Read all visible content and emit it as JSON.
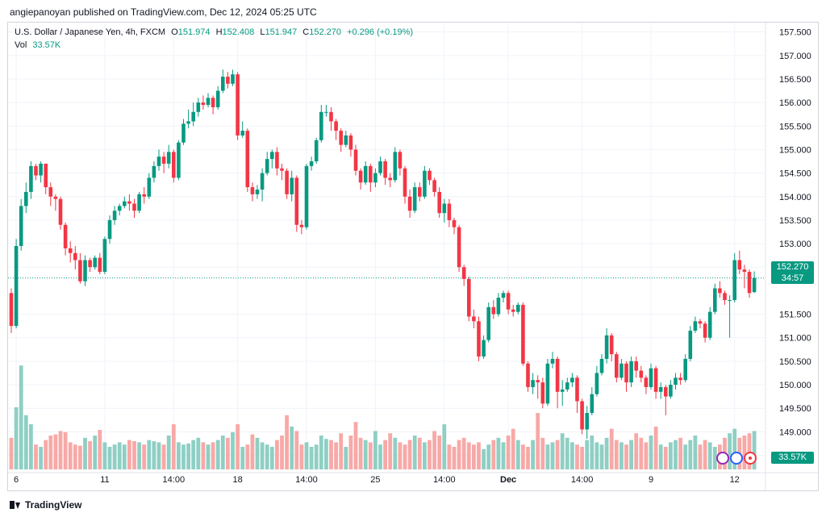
{
  "publisher": "angiepanoyan published on TradingView.com, Dec 12, 2024 05:25 UTC",
  "legend": {
    "symbol": "U.S. Dollar / Japanese Yen, 4h, FXCM",
    "o_label": "O",
    "o_value": "151.974",
    "h_label": "H",
    "h_value": "152.408",
    "l_label": "L",
    "l_value": "151.947",
    "c_label": "C",
    "c_value": "152.270",
    "change": "+0.296 (+0.19%)",
    "vol_label": "Vol",
    "vol_value": "33.57K"
  },
  "last_price_tag": "152.270",
  "countdown": "34:57",
  "vol_tag": "33.57K",
  "footer_brand": "TradingView",
  "colors": {
    "up": "#089981",
    "down": "#f23645",
    "vol_up": "#8fcfc4",
    "vol_down": "#f7a9a7",
    "grid": "#f0f3fa"
  },
  "chart_data": {
    "type": "candlestick",
    "ylim": [
      148.2,
      157.7
    ],
    "yticks": [
      "157.500",
      "157.000",
      "156.500",
      "156.000",
      "155.500",
      "155.000",
      "154.500",
      "154.000",
      "153.500",
      "153.000",
      "152.500",
      "151.500",
      "151.000",
      "150.500",
      "150.000",
      "149.500",
      "149.000",
      "148.500"
    ],
    "xticks": [
      {
        "label": "6",
        "bar": 1
      },
      {
        "label": "11",
        "bar": 19
      },
      {
        "label": "14:00",
        "bar": 33
      },
      {
        "label": "18",
        "bar": 46
      },
      {
        "label": "14:00",
        "bar": 60
      },
      {
        "label": "25",
        "bar": 74
      },
      {
        "label": "14:00",
        "bar": 88
      },
      {
        "label": "Dec",
        "bar": 101
      },
      {
        "label": "14:00",
        "bar": 116
      },
      {
        "label": "9",
        "bar": 130
      },
      {
        "label": "12",
        "bar": 147
      }
    ],
    "last_price": 152.27,
    "candles": [
      [
        151.95,
        151.25,
        152.05,
        151.1
      ],
      [
        151.25,
        152.95,
        153.1,
        151.2
      ],
      [
        152.95,
        153.8,
        153.95,
        152.85
      ],
      [
        153.8,
        154.1,
        154.3,
        153.65
      ],
      [
        154.1,
        154.65,
        154.75,
        153.95
      ],
      [
        154.65,
        154.45,
        154.7,
        154.35
      ],
      [
        154.45,
        154.7,
        154.75,
        154.3
      ],
      [
        154.7,
        154.2,
        154.7,
        154.05
      ],
      [
        154.2,
        154.0,
        154.3,
        153.8
      ],
      [
        154.0,
        153.95,
        154.05,
        153.7
      ],
      [
        153.95,
        153.4,
        154.0,
        153.3
      ],
      [
        153.4,
        152.9,
        153.45,
        152.75
      ],
      [
        152.9,
        152.8,
        153.05,
        152.6
      ],
      [
        152.8,
        152.65,
        152.95,
        152.45
      ],
      [
        152.65,
        152.2,
        152.8,
        152.15
      ],
      [
        152.2,
        152.65,
        152.75,
        152.1
      ],
      [
        152.65,
        152.5,
        152.7,
        152.4
      ],
      [
        152.5,
        152.7,
        152.75,
        152.45
      ],
      [
        152.7,
        152.4,
        152.8,
        152.35
      ],
      [
        152.4,
        153.1,
        153.15,
        152.35
      ],
      [
        153.1,
        153.5,
        153.6,
        153.0
      ],
      [
        153.5,
        153.7,
        153.8,
        153.4
      ],
      [
        153.7,
        153.8,
        153.85,
        153.6
      ],
      [
        153.8,
        153.9,
        154.0,
        153.75
      ],
      [
        153.9,
        153.85,
        154.05,
        153.7
      ],
      [
        153.85,
        153.7,
        153.95,
        153.55
      ],
      [
        153.7,
        154.05,
        154.1,
        153.65
      ],
      [
        154.05,
        154.0,
        154.2,
        153.85
      ],
      [
        154.0,
        154.4,
        154.5,
        153.95
      ],
      [
        154.4,
        154.65,
        154.75,
        154.3
      ],
      [
        154.65,
        154.85,
        155.0,
        154.55
      ],
      [
        154.85,
        154.7,
        154.95,
        154.5
      ],
      [
        154.7,
        154.95,
        155.1,
        154.6
      ],
      [
        154.95,
        154.4,
        155.0,
        154.3
      ],
      [
        154.4,
        155.15,
        155.2,
        154.35
      ],
      [
        155.15,
        155.55,
        155.65,
        155.1
      ],
      [
        155.55,
        155.6,
        155.85,
        155.45
      ],
      [
        155.6,
        155.8,
        156.0,
        155.5
      ],
      [
        155.8,
        156.0,
        156.1,
        155.7
      ],
      [
        156.0,
        155.95,
        156.15,
        155.85
      ],
      [
        155.95,
        156.1,
        156.2,
        155.9
      ],
      [
        156.1,
        155.9,
        156.15,
        155.75
      ],
      [
        155.9,
        156.25,
        156.35,
        155.85
      ],
      [
        156.25,
        156.55,
        156.7,
        156.2
      ],
      [
        156.55,
        156.4,
        156.65,
        156.3
      ],
      [
        156.4,
        156.6,
        156.7,
        156.35
      ],
      [
        156.6,
        155.3,
        156.65,
        155.2
      ],
      [
        155.3,
        155.4,
        155.6,
        155.25
      ],
      [
        155.4,
        154.2,
        155.45,
        154.1
      ],
      [
        154.2,
        154.05,
        154.3,
        153.9
      ],
      [
        154.05,
        154.15,
        154.25,
        153.95
      ],
      [
        154.15,
        154.5,
        154.6,
        153.9
      ],
      [
        154.5,
        154.8,
        154.95,
        154.45
      ],
      [
        154.8,
        154.95,
        155.0,
        154.6
      ],
      [
        154.95,
        154.6,
        155.05,
        154.45
      ],
      [
        154.6,
        154.55,
        154.7,
        154.35
      ],
      [
        154.55,
        154.05,
        154.6,
        153.95
      ],
      [
        154.05,
        154.4,
        154.55,
        153.9
      ],
      [
        154.4,
        153.4,
        154.45,
        153.25
      ],
      [
        153.4,
        153.35,
        153.5,
        153.2
      ],
      [
        153.35,
        154.65,
        154.7,
        153.3
      ],
      [
        154.65,
        154.75,
        154.85,
        154.55
      ],
      [
        154.75,
        155.2,
        155.25,
        154.7
      ],
      [
        155.2,
        155.8,
        155.95,
        155.15
      ],
      [
        155.8,
        155.8,
        155.95,
        155.7
      ],
      [
        155.8,
        155.6,
        155.9,
        155.4
      ],
      [
        155.6,
        155.4,
        155.65,
        155.2
      ],
      [
        155.4,
        155.1,
        155.45,
        154.95
      ],
      [
        155.1,
        155.3,
        155.4,
        155.05
      ],
      [
        155.3,
        155.0,
        155.35,
        154.85
      ],
      [
        155.0,
        154.55,
        155.1,
        154.45
      ],
      [
        154.55,
        154.3,
        154.6,
        154.15
      ],
      [
        154.3,
        154.65,
        154.75,
        154.25
      ],
      [
        154.65,
        154.3,
        154.7,
        154.1
      ],
      [
        154.3,
        154.5,
        154.6,
        154.2
      ],
      [
        154.5,
        154.75,
        154.85,
        154.45
      ],
      [
        154.75,
        154.4,
        154.8,
        154.25
      ],
      [
        154.4,
        154.35,
        154.5,
        154.2
      ],
      [
        154.35,
        154.95,
        155.05,
        154.3
      ],
      [
        154.95,
        154.6,
        155.0,
        154.45
      ],
      [
        154.6,
        154.0,
        154.65,
        153.85
      ],
      [
        154.0,
        153.7,
        154.15,
        153.55
      ],
      [
        153.7,
        154.2,
        154.3,
        153.65
      ],
      [
        154.2,
        154.0,
        154.3,
        153.9
      ],
      [
        154.0,
        154.55,
        154.65,
        153.95
      ],
      [
        154.55,
        154.35,
        154.6,
        154.25
      ],
      [
        154.35,
        154.1,
        154.4,
        154.0
      ],
      [
        154.1,
        153.65,
        154.2,
        153.55
      ],
      [
        153.65,
        153.85,
        153.95,
        153.45
      ],
      [
        153.85,
        153.5,
        153.95,
        153.35
      ],
      [
        153.5,
        153.35,
        153.55,
        153.2
      ],
      [
        153.35,
        152.5,
        153.4,
        152.4
      ],
      [
        152.5,
        152.25,
        152.55,
        152.1
      ],
      [
        152.25,
        151.45,
        152.3,
        151.35
      ],
      [
        151.45,
        151.35,
        151.6,
        151.2
      ],
      [
        151.35,
        150.6,
        151.45,
        150.5
      ],
      [
        150.6,
        150.95,
        151.05,
        150.55
      ],
      [
        150.95,
        151.65,
        151.75,
        150.9
      ],
      [
        151.65,
        151.5,
        151.8,
        151.4
      ],
      [
        151.5,
        151.85,
        151.95,
        151.45
      ],
      [
        151.85,
        151.95,
        152.0,
        151.75
      ],
      [
        151.95,
        151.6,
        152.0,
        151.5
      ],
      [
        151.6,
        151.55,
        151.7,
        151.45
      ],
      [
        151.55,
        151.7,
        151.75,
        151.5
      ],
      [
        151.7,
        150.45,
        151.75,
        150.4
      ],
      [
        150.45,
        149.95,
        150.5,
        149.85
      ],
      [
        149.95,
        150.1,
        150.25,
        149.8
      ],
      [
        150.1,
        150.05,
        150.2,
        149.7
      ],
      [
        150.05,
        149.6,
        150.15,
        149.5
      ],
      [
        149.6,
        150.45,
        150.55,
        149.55
      ],
      [
        150.45,
        150.55,
        150.7,
        150.35
      ],
      [
        150.55,
        149.85,
        150.6,
        149.5
      ],
      [
        149.85,
        149.9,
        150.1,
        149.55
      ],
      [
        149.9,
        150.05,
        150.15,
        149.85
      ],
      [
        150.05,
        150.15,
        150.25,
        149.95
      ],
      [
        150.15,
        149.65,
        150.2,
        149.4
      ],
      [
        149.65,
        149.05,
        149.7,
        148.95
      ],
      [
        149.05,
        149.4,
        149.55,
        148.85
      ],
      [
        149.4,
        149.8,
        149.95,
        149.35
      ],
      [
        149.8,
        150.25,
        150.4,
        149.75
      ],
      [
        150.25,
        150.55,
        150.65,
        150.2
      ],
      [
        150.55,
        151.05,
        151.2,
        150.45
      ],
      [
        151.05,
        150.65,
        151.1,
        150.5
      ],
      [
        150.65,
        150.15,
        150.7,
        150.05
      ],
      [
        150.15,
        150.45,
        150.55,
        150.1
      ],
      [
        150.45,
        150.05,
        150.5,
        149.85
      ],
      [
        150.05,
        150.5,
        150.6,
        149.95
      ],
      [
        150.5,
        150.3,
        150.6,
        150.15
      ],
      [
        150.3,
        150.15,
        150.4,
        150.05
      ],
      [
        150.15,
        149.95,
        150.2,
        149.8
      ],
      [
        149.95,
        150.35,
        150.45,
        149.9
      ],
      [
        150.35,
        149.85,
        150.4,
        149.7
      ],
      [
        149.85,
        149.95,
        150.05,
        149.7
      ],
      [
        149.95,
        149.75,
        150.0,
        149.35
      ],
      [
        149.75,
        150.0,
        150.1,
        149.7
      ],
      [
        150.0,
        150.15,
        150.25,
        149.9
      ],
      [
        150.15,
        150.1,
        150.25,
        150.0
      ],
      [
        150.1,
        150.55,
        150.65,
        150.05
      ],
      [
        150.55,
        151.15,
        151.25,
        150.5
      ],
      [
        151.15,
        151.35,
        151.45,
        151.1
      ],
      [
        151.35,
        151.3,
        151.4,
        151.2
      ],
      [
        151.3,
        151.0,
        151.35,
        150.9
      ],
      [
        151.0,
        151.55,
        151.65,
        150.95
      ],
      [
        151.55,
        152.05,
        152.15,
        151.5
      ],
      [
        152.05,
        151.95,
        152.2,
        151.85
      ],
      [
        151.95,
        151.8,
        152.0,
        151.7
      ],
      [
        151.8,
        151.8,
        151.9,
        151.0
      ],
      [
        151.8,
        152.65,
        152.8,
        151.75
      ],
      [
        152.65,
        152.45,
        152.85,
        152.35
      ],
      [
        152.45,
        152.4,
        152.55,
        152.05
      ],
      [
        152.4,
        151.95,
        152.45,
        151.85
      ],
      [
        151.97,
        152.27,
        152.41,
        151.95
      ]
    ],
    "volume_scale_max": 100,
    "volumes": [
      28,
      55,
      92,
      48,
      40,
      22,
      20,
      26,
      30,
      31,
      34,
      33,
      24,
      22,
      21,
      28,
      25,
      30,
      35,
      24,
      20,
      22,
      24,
      22,
      26,
      25,
      24,
      22,
      26,
      25,
      24,
      22,
      30,
      40,
      24,
      22,
      23,
      26,
      28,
      24,
      22,
      24,
      26,
      30,
      28,
      33,
      40,
      20,
      22,
      31,
      28,
      24,
      22,
      20,
      26,
      30,
      48,
      38,
      34,
      22,
      24,
      20,
      22,
      30,
      27,
      26,
      24,
      32,
      20,
      30,
      42,
      28,
      26,
      24,
      34,
      22,
      26,
      32,
      28,
      24,
      22,
      26,
      30,
      28,
      24,
      26,
      34,
      30,
      40,
      22,
      20,
      26,
      28,
      24,
      22,
      24,
      18,
      22,
      26,
      28,
      24,
      30,
      36,
      26,
      22,
      20,
      26,
      50,
      28,
      22,
      24,
      26,
      32,
      28,
      24,
      22,
      20,
      26,
      30,
      24,
      22,
      28,
      36,
      26,
      24,
      22,
      26,
      32,
      28,
      24,
      30,
      38,
      22,
      20,
      24,
      26,
      28,
      22,
      26,
      30,
      22,
      26,
      24,
      20,
      22,
      28,
      32,
      36,
      28,
      30,
      32,
      34
    ]
  }
}
